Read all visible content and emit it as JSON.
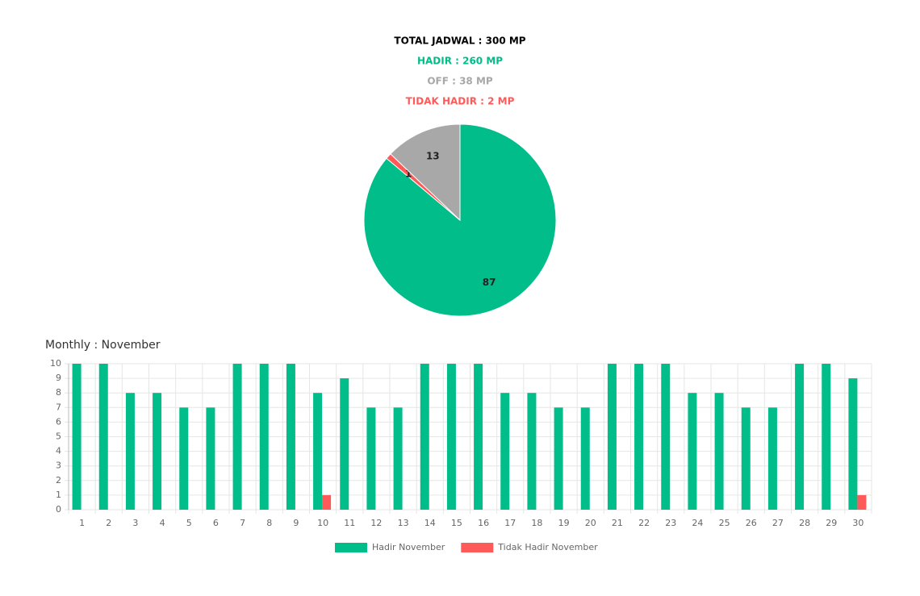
{
  "header": {
    "lines": [
      {
        "text": "TOTAL JADWAL : 300 MP",
        "color": "#000000"
      },
      {
        "text": "HADIR : 260 MP",
        "color": "#00bd8a"
      },
      {
        "text": "OFF : 38 MP",
        "color": "#a8a8a8"
      },
      {
        "text": "TIDAK HADIR : 2 MP",
        "color": "#ff5a5a"
      }
    ]
  },
  "chart_data": [
    {
      "type": "pie",
      "values": [
        87,
        1,
        13
      ],
      "colors": [
        "#00bd8a",
        "#ff5a5a",
        "#a8a8a8"
      ]
    },
    {
      "type": "bar",
      "title": "Monthly : November",
      "categories": [
        1,
        2,
        3,
        4,
        5,
        6,
        7,
        8,
        9,
        10,
        11,
        12,
        13,
        14,
        15,
        16,
        17,
        18,
        19,
        20,
        21,
        22,
        23,
        24,
        25,
        26,
        27,
        28,
        29,
        30
      ],
      "series": [
        {
          "name": "Hadir November",
          "color": "#00bd8a",
          "values": [
            10,
            10,
            8,
            8,
            7,
            7,
            10,
            10,
            10,
            8,
            9,
            7,
            7,
            10,
            10,
            10,
            8,
            8,
            7,
            7,
            10,
            10,
            10,
            8,
            8,
            7,
            7,
            10,
            10,
            9
          ]
        },
        {
          "name": "Tidak Hadir November",
          "color": "#ff5a5a",
          "values": [
            0,
            0,
            0,
            0,
            0,
            0,
            0,
            0,
            0,
            1,
            0,
            0,
            0,
            0,
            0,
            0,
            0,
            0,
            0,
            0,
            0,
            0,
            0,
            0,
            0,
            0,
            0,
            0,
            0,
            1
          ]
        }
      ],
      "ylim": [
        0,
        10
      ],
      "yticks": [
        0,
        1,
        2,
        3,
        4,
        5,
        6,
        7,
        8,
        9,
        10
      ],
      "grid": true,
      "legend": "bottom"
    }
  ]
}
